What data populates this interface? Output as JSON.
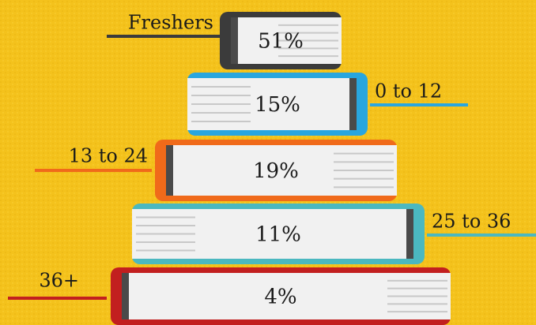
{
  "books": [
    {
      "label": "Freshers",
      "value": "51%"
    },
    {
      "label": "0 to 12",
      "value": "15%"
    },
    {
      "label": "13 to 24",
      "value": "19%"
    },
    {
      "label": "25 to 36",
      "value": "11%"
    },
    {
      "label": "36+",
      "value": "4%"
    }
  ]
}
